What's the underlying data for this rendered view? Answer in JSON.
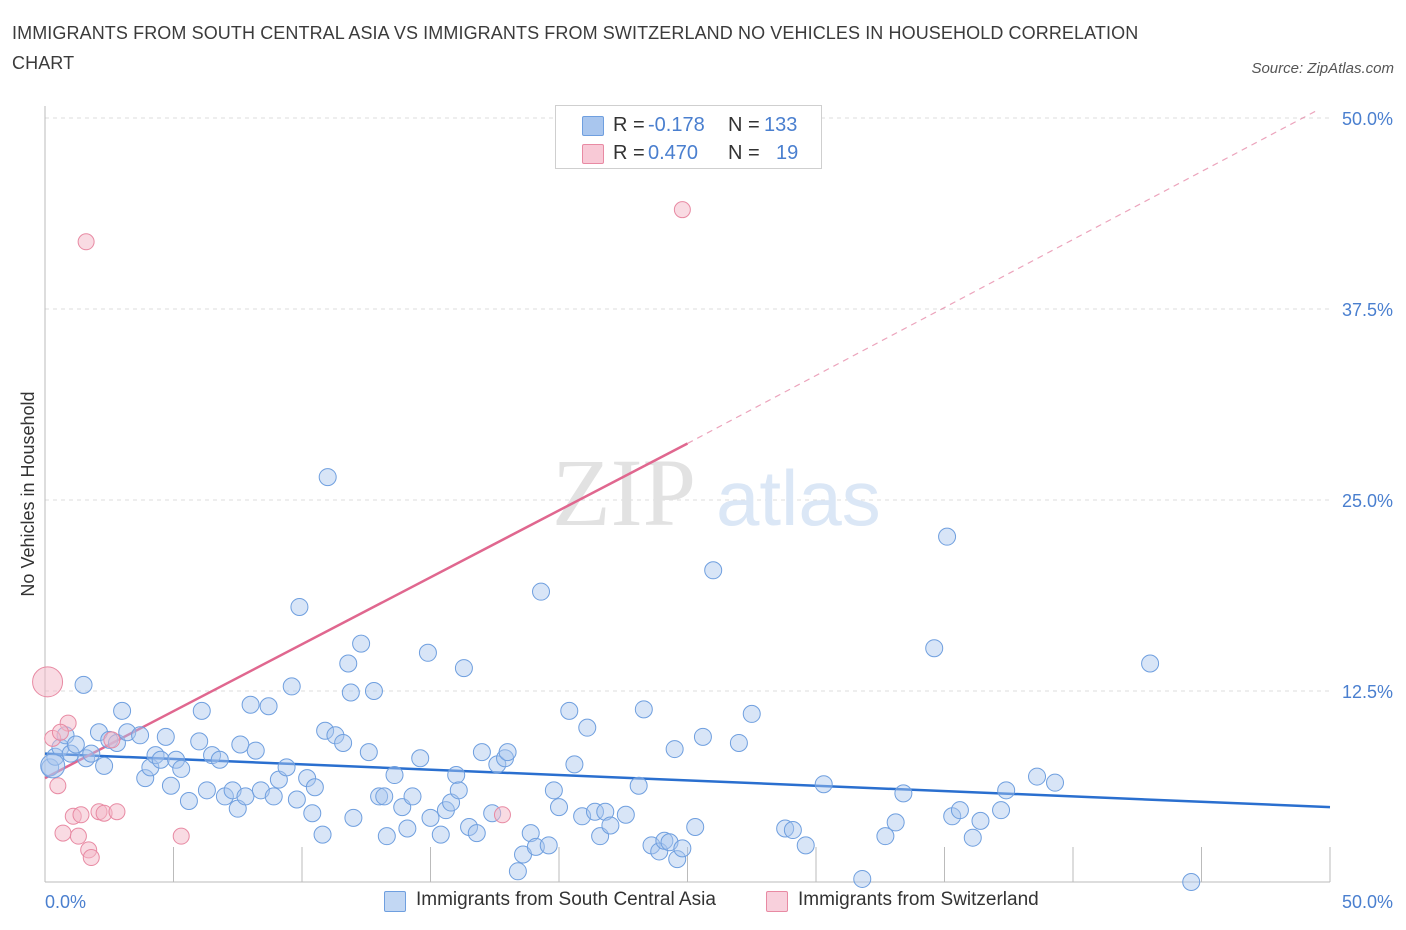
{
  "title": "IMMIGRANTS FROM SOUTH CENTRAL ASIA VS IMMIGRANTS FROM SWITZERLAND NO VEHICLES IN HOUSEHOLD CORRELATION CHART",
  "source": "Source: ZipAtlas.com",
  "watermark": {
    "zip": "ZIP",
    "atlas": "atlas"
  },
  "legend": {
    "rows": [
      {
        "r_label": "R =",
        "r_value": "-0.178",
        "n_label": "N =",
        "n_value": "133",
        "color": "#a9c6ee"
      },
      {
        "r_label": "R =",
        "r_value": "0.470",
        "n_label": "N =",
        "n_value": "19",
        "color": "#f4b8c8"
      }
    ]
  },
  "bottom_legend": {
    "series1": "Immigrants from South Central Asia",
    "series2": "Immigrants from Switzerland"
  },
  "colors": {
    "blue_fill": "#a9c6ee",
    "blue_stroke": "#6f9fdf",
    "blue_line": "#2a6fcf",
    "pink_fill": "#f4b8c8",
    "pink_stroke": "#e88aa3",
    "pink_line": "#e0678f",
    "tick_label": "#4a7fcf",
    "grid": "#dcdcdc"
  },
  "chart_data": {
    "type": "scatter",
    "title": "IMMIGRANTS FROM SOUTH CENTRAL ASIA VS IMMIGRANTS FROM SWITZERLAND NO VEHICLES IN HOUSEHOLD CORRELATION CHART",
    "xlabel": "",
    "ylabel": "No Vehicles in Household",
    "xlim": [
      0,
      50
    ],
    "ylim": [
      0,
      50
    ],
    "x_tick_labels": [
      "0.0%",
      "50.0%"
    ],
    "y_tick_labels": [
      "12.5%",
      "25.0%",
      "37.5%",
      "50.0%"
    ],
    "y_ticks": [
      12.5,
      25,
      37.5,
      50
    ],
    "grid": "horizontal dashed",
    "legend_position": "top-center",
    "series": [
      {
        "name": "Immigrants from South Central Asia",
        "color": "#a9c6ee",
        "r": -0.178,
        "n": 133,
        "trend": {
          "x": [
            0,
            50
          ],
          "y": [
            8.4,
            4.9
          ],
          "style": "solid"
        },
        "points": [
          [
            0.2,
            7.5
          ],
          [
            0.4,
            8.2
          ],
          [
            0.6,
            8.8
          ],
          [
            0.8,
            9.6
          ],
          [
            1.0,
            8.4
          ],
          [
            1.2,
            9.0
          ],
          [
            1.5,
            12.9
          ],
          [
            1.6,
            8.1
          ],
          [
            1.8,
            8.4
          ],
          [
            2.1,
            9.8
          ],
          [
            2.3,
            7.6
          ],
          [
            2.5,
            9.3
          ],
          [
            2.8,
            9.1
          ],
          [
            3.0,
            11.2
          ],
          [
            3.2,
            9.8
          ],
          [
            3.7,
            9.6
          ],
          [
            3.9,
            6.8
          ],
          [
            4.1,
            7.5
          ],
          [
            4.3,
            8.3
          ],
          [
            4.5,
            8.0
          ],
          [
            4.7,
            9.5
          ],
          [
            4.9,
            6.3
          ],
          [
            5.1,
            8.0
          ],
          [
            5.3,
            7.4
          ],
          [
            5.6,
            5.3
          ],
          [
            6.0,
            9.2
          ],
          [
            6.1,
            11.2
          ],
          [
            6.3,
            6.0
          ],
          [
            6.5,
            8.3
          ],
          [
            6.8,
            8.0
          ],
          [
            7.0,
            5.6
          ],
          [
            7.3,
            6.0
          ],
          [
            7.5,
            4.8
          ],
          [
            7.6,
            9.0
          ],
          [
            7.8,
            5.6
          ],
          [
            8.2,
            8.6
          ],
          [
            8.0,
            11.6
          ],
          [
            8.4,
            6.0
          ],
          [
            8.7,
            11.5
          ],
          [
            8.9,
            5.6
          ],
          [
            9.1,
            6.7
          ],
          [
            9.4,
            7.5
          ],
          [
            9.6,
            12.8
          ],
          [
            9.8,
            5.4
          ],
          [
            9.9,
            18.0
          ],
          [
            10.2,
            6.8
          ],
          [
            10.4,
            4.5
          ],
          [
            10.5,
            6.2
          ],
          [
            10.8,
            3.1
          ],
          [
            10.9,
            9.9
          ],
          [
            11.0,
            26.5
          ],
          [
            11.3,
            9.6
          ],
          [
            11.6,
            9.1
          ],
          [
            11.8,
            14.3
          ],
          [
            11.9,
            12.4
          ],
          [
            12.3,
            15.6
          ],
          [
            12.0,
            4.2
          ],
          [
            12.6,
            8.5
          ],
          [
            12.8,
            12.5
          ],
          [
            13.0,
            5.6
          ],
          [
            13.2,
            5.6
          ],
          [
            13.3,
            3.0
          ],
          [
            13.6,
            7.0
          ],
          [
            13.9,
            4.9
          ],
          [
            14.1,
            3.5
          ],
          [
            14.3,
            5.6
          ],
          [
            14.6,
            8.1
          ],
          [
            14.9,
            15.0
          ],
          [
            15.0,
            4.2
          ],
          [
            15.4,
            3.1
          ],
          [
            15.6,
            4.7
          ],
          [
            15.8,
            5.2
          ],
          [
            16.0,
            7.0
          ],
          [
            16.1,
            6.0
          ],
          [
            16.3,
            14.0
          ],
          [
            16.5,
            3.6
          ],
          [
            16.8,
            3.2
          ],
          [
            17.0,
            8.5
          ],
          [
            17.4,
            4.5
          ],
          [
            17.6,
            7.7
          ],
          [
            17.9,
            8.1
          ],
          [
            18.0,
            8.5
          ],
          [
            18.4,
            0.7
          ],
          [
            18.6,
            1.8
          ],
          [
            18.9,
            3.2
          ],
          [
            19.1,
            2.3
          ],
          [
            19.3,
            19.0
          ],
          [
            19.6,
            2.4
          ],
          [
            19.8,
            6.0
          ],
          [
            20.0,
            4.9
          ],
          [
            20.4,
            11.2
          ],
          [
            20.6,
            7.7
          ],
          [
            20.9,
            4.3
          ],
          [
            21.1,
            10.1
          ],
          [
            21.4,
            4.6
          ],
          [
            21.6,
            3.0
          ],
          [
            21.8,
            4.6
          ],
          [
            22.0,
            3.7
          ],
          [
            22.6,
            4.4
          ],
          [
            23.1,
            6.3
          ],
          [
            23.3,
            11.3
          ],
          [
            23.6,
            2.4
          ],
          [
            23.9,
            2.0
          ],
          [
            24.1,
            2.7
          ],
          [
            24.3,
            2.6
          ],
          [
            24.6,
            1.5
          ],
          [
            24.5,
            8.7
          ],
          [
            24.8,
            2.2
          ],
          [
            25.3,
            3.6
          ],
          [
            25.6,
            9.5
          ],
          [
            26.0,
            20.4
          ],
          [
            27.0,
            9.1
          ],
          [
            27.5,
            11.0
          ],
          [
            28.8,
            3.5
          ],
          [
            29.1,
            3.4
          ],
          [
            29.6,
            2.4
          ],
          [
            30.3,
            6.4
          ],
          [
            31.8,
            0.2
          ],
          [
            32.7,
            3.0
          ],
          [
            33.1,
            3.9
          ],
          [
            33.4,
            5.8
          ],
          [
            34.6,
            15.3
          ],
          [
            35.3,
            4.3
          ],
          [
            35.6,
            4.7
          ],
          [
            35.1,
            22.6
          ],
          [
            36.1,
            2.9
          ],
          [
            36.4,
            4.0
          ],
          [
            37.2,
            4.7
          ],
          [
            37.4,
            6.0
          ],
          [
            38.6,
            6.9
          ],
          [
            39.3,
            6.5
          ],
          [
            43.0,
            14.3
          ],
          [
            44.6,
            0.0
          ]
        ]
      },
      {
        "name": "Immigrants from Switzerland",
        "color": "#f4b8c8",
        "r": 0.47,
        "n": 19,
        "trend": {
          "x": [
            0,
            25
          ],
          "y": [
            6.8,
            28.7
          ],
          "style": "solid",
          "extension": {
            "x": [
              25,
              49.5
            ],
            "y": [
              28.7,
              50.5
            ],
            "style": "dashed"
          }
        },
        "points": [
          [
            0.1,
            13.1
          ],
          [
            0.3,
            9.4
          ],
          [
            0.5,
            6.3
          ],
          [
            0.7,
            3.2
          ],
          [
            0.9,
            10.4
          ],
          [
            1.1,
            4.3
          ],
          [
            1.3,
            3.0
          ],
          [
            1.4,
            4.4
          ],
          [
            1.6,
            41.9
          ],
          [
            1.7,
            2.1
          ],
          [
            1.8,
            1.6
          ],
          [
            2.1,
            4.6
          ],
          [
            2.3,
            4.5
          ],
          [
            2.6,
            9.3
          ],
          [
            2.8,
            4.6
          ],
          [
            5.3,
            3.0
          ],
          [
            17.8,
            4.4
          ],
          [
            24.8,
            44.0
          ],
          [
            0.6,
            9.8
          ]
        ]
      }
    ]
  }
}
